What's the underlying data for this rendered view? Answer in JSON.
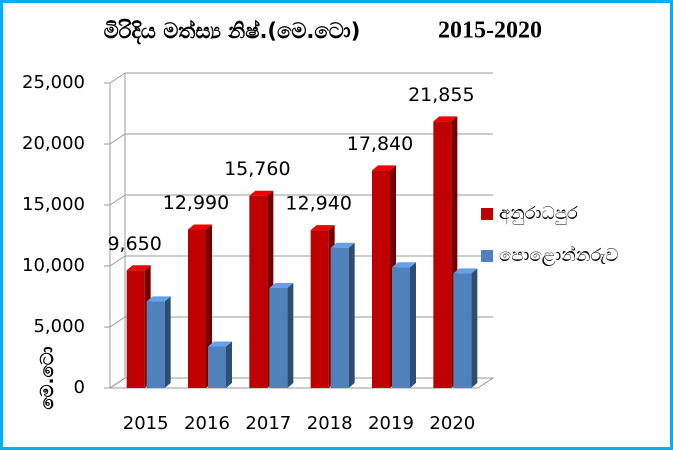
{
  "chart_data": {
    "type": "bar3d",
    "title": "මිරිදිය මත්ස්‍ය නිෂ්.(මෙ.ටො)",
    "subtitle": "2015-2020",
    "y_label": "මෙ.ටො",
    "categories": [
      "2015",
      "2016",
      "2017",
      "2018",
      "2019",
      "2020"
    ],
    "series": [
      {
        "name": "අනුරාධපුර",
        "color": "#c00000",
        "values": [
          9650,
          12990,
          15760,
          12940,
          17840,
          21855
        ],
        "value_labels": [
          "9,650",
          "12,990",
          "15,760",
          "12,940",
          "17,840",
          "21,855"
        ]
      },
      {
        "name": "පොළොන්නරුව",
        "color": "#4f81bd",
        "values": [
          7100,
          3400,
          8200,
          11500,
          9900,
          9400
        ]
      }
    ],
    "ylim": [
      0,
      25000
    ],
    "yticks": [
      0,
      {
        "value": 5000,
        "label": "5,000"
      },
      {
        "value": 10000,
        "label": "10,000"
      },
      {
        "value": 15000,
        "label": "15,000"
      },
      {
        "value": 20000,
        "label": "20,000"
      },
      {
        "value": 25000,
        "label": "25,000"
      }
    ],
    "grid": true,
    "legend": "right"
  }
}
